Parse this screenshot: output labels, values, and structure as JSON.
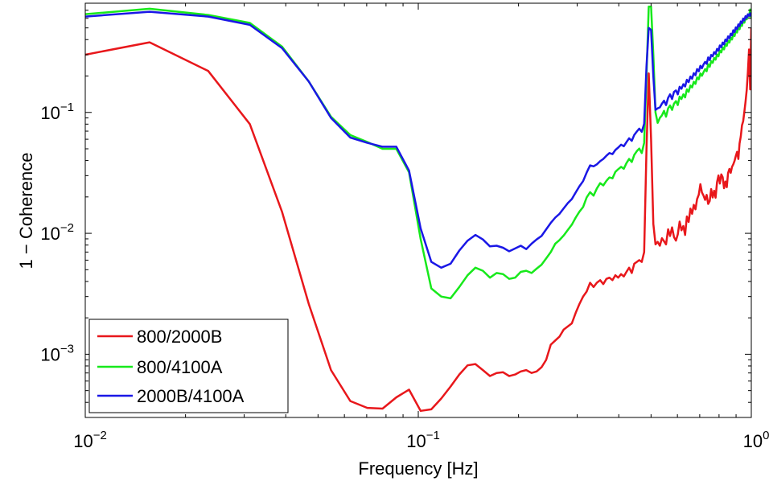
{
  "chart_data": {
    "type": "line",
    "xlabel": "Frequency [Hz]",
    "ylabel": "1 − Coherence",
    "xscale": "log",
    "yscale": "log",
    "xlim": [
      0.01,
      1
    ],
    "ylim": [
      0.0003,
      0.8
    ],
    "x_ticks": [
      {
        "value": 0.01,
        "base": "10",
        "exp": "−2"
      },
      {
        "value": 0.1,
        "base": "10",
        "exp": "−1"
      },
      {
        "value": 1,
        "base": "10",
        "exp": "0"
      }
    ],
    "y_ticks": [
      {
        "value": 0.001,
        "base": "10",
        "exp": "−3"
      },
      {
        "value": 0.01,
        "base": "10",
        "exp": "−2"
      },
      {
        "value": 0.1,
        "base": "10",
        "exp": "−1"
      }
    ],
    "grid": false,
    "legend_position": "bottom-left",
    "series": [
      {
        "name": "800/2000B",
        "color": "#e8171b",
        "x": [
          0.01,
          0.0156,
          0.0234,
          0.0312,
          0.039,
          0.0469,
          0.0547,
          0.0625,
          0.0703,
          0.0781,
          0.0859,
          0.0938,
          0.1016,
          0.1094,
          0.1172,
          0.125,
          0.1328,
          0.1406,
          0.1484,
          0.1563,
          0.1641,
          0.1719,
          0.1797,
          0.1875,
          0.1953,
          0.2031,
          0.2109,
          0.2188,
          0.2266,
          0.2344,
          0.2422,
          0.25,
          0.2578,
          0.2656,
          0.2734,
          0.2813,
          0.2891,
          0.2969,
          0.3047,
          0.3125,
          0.3203,
          0.3281,
          0.3359,
          0.3438,
          0.3516,
          0.3594,
          0.3672,
          0.375,
          0.3828,
          0.3906,
          0.3984,
          0.4063,
          0.4141,
          0.4219,
          0.4297,
          0.4375,
          0.4453,
          0.4531,
          0.4609,
          0.4688,
          0.4766,
          0.4844,
          0.4922,
          0.5,
          0.5078,
          0.5156,
          0.5234,
          0.5313,
          0.5391,
          0.5469,
          0.5547,
          0.5625,
          0.5703,
          0.5781,
          0.5859,
          0.5938,
          0.6016,
          0.6094,
          0.6172,
          0.625,
          0.6328,
          0.6406,
          0.6484,
          0.6563,
          0.6641,
          0.6719,
          0.6797,
          0.6875,
          0.6953,
          0.7031,
          0.7109,
          0.7188,
          0.7266,
          0.7344,
          0.7422,
          0.75,
          0.7578,
          0.7656,
          0.7734,
          0.7813,
          0.7891,
          0.7969,
          0.8047,
          0.8125,
          0.8203,
          0.8281,
          0.8359,
          0.8438,
          0.8516,
          0.8594,
          0.8672,
          0.875,
          0.8828,
          0.8906,
          0.8984,
          0.9063,
          0.9141,
          0.9219,
          0.9297,
          0.9375,
          0.9453,
          0.9531,
          0.9609,
          0.9688,
          0.9766,
          0.9844,
          0.9922,
          1.0
        ],
        "y": [
          0.3,
          0.38,
          0.22,
          0.08,
          0.015,
          0.0026,
          0.00074,
          0.00041,
          0.00036,
          0.000355,
          0.00044,
          0.00051,
          0.00034,
          0.00035,
          0.00043,
          0.00054,
          0.00068,
          0.00081,
          0.00083,
          0.00074,
          0.00066,
          0.0007,
          0.00071,
          0.00066,
          0.00068,
          0.00072,
          0.00074,
          0.0007,
          0.00072,
          0.00078,
          0.0009,
          0.0012,
          0.0013,
          0.0014,
          0.0016,
          0.0017,
          0.0018,
          0.0022,
          0.0026,
          0.003,
          0.0033,
          0.0039,
          0.0036,
          0.0039,
          0.0041,
          0.0038,
          0.0042,
          0.0043,
          0.0041,
          0.0045,
          0.0043,
          0.0046,
          0.0044,
          0.0048,
          0.0052,
          0.0047,
          0.0056,
          0.0058,
          0.006,
          0.0058,
          0.007,
          0.05,
          0.21,
          0.06,
          0.012,
          0.0081,
          0.0085,
          0.0079,
          0.0091,
          0.0086,
          0.0081,
          0.0108,
          0.0095,
          0.0112,
          0.0093,
          0.0087,
          0.0098,
          0.0125,
          0.0106,
          0.0115,
          0.0097,
          0.0138,
          0.0124,
          0.016,
          0.0145,
          0.0172,
          0.0158,
          0.0192,
          0.0209,
          0.0255,
          0.0218,
          0.0205,
          0.0189,
          0.0208,
          0.0175,
          0.0185,
          0.0232,
          0.0198,
          0.0225,
          0.0197,
          0.0265,
          0.0301,
          0.0258,
          0.0307,
          0.0291,
          0.0236,
          0.0268,
          0.0241,
          0.0315,
          0.0341,
          0.0317,
          0.0354,
          0.0372,
          0.0398,
          0.0435,
          0.0472,
          0.0412,
          0.0554,
          0.0632,
          0.0781,
          0.0845,
          0.1016,
          0.1221,
          0.1531,
          0.2128,
          0.3315,
          0.155,
          0.5
        ]
      },
      {
        "name": "800/4100A",
        "color": "#17e91b",
        "x": [
          0.01,
          0.0156,
          0.0234,
          0.0312,
          0.039,
          0.0469,
          0.0547,
          0.0625,
          0.0703,
          0.0781,
          0.0859,
          0.0938,
          0.1016,
          0.1094,
          0.1172,
          0.125,
          0.1328,
          0.1406,
          0.1484,
          0.1563,
          0.1641,
          0.1719,
          0.1797,
          0.1875,
          0.1953,
          0.2031,
          0.2109,
          0.2188,
          0.2266,
          0.2344,
          0.2422,
          0.25,
          0.2578,
          0.2656,
          0.2734,
          0.2813,
          0.2891,
          0.2969,
          0.3047,
          0.3125,
          0.3203,
          0.3281,
          0.3359,
          0.3438,
          0.3516,
          0.3594,
          0.3672,
          0.375,
          0.3828,
          0.3906,
          0.3984,
          0.4063,
          0.4141,
          0.4219,
          0.4297,
          0.4375,
          0.4453,
          0.4531,
          0.4609,
          0.4688,
          0.4766,
          0.4844,
          0.4922,
          0.5,
          0.5078,
          0.5156,
          0.5234,
          0.5313,
          0.5391,
          0.5469,
          0.5547,
          0.5625,
          0.5703,
          0.5781,
          0.5859,
          0.5938,
          0.6016,
          0.6094,
          0.6172,
          0.625,
          0.6328,
          0.6406,
          0.6484,
          0.6563,
          0.6641,
          0.6719,
          0.6797,
          0.6875,
          0.6953,
          0.7031,
          0.7109,
          0.7188,
          0.7266,
          0.7344,
          0.7422,
          0.75,
          0.7578,
          0.7656,
          0.7734,
          0.7813,
          0.7891,
          0.7969,
          0.8047,
          0.8125,
          0.8203,
          0.8281,
          0.8359,
          0.8438,
          0.8516,
          0.8594,
          0.8672,
          0.875,
          0.8828,
          0.8906,
          0.8984,
          0.9063,
          0.9141,
          0.9219,
          0.9297,
          0.9375,
          0.9453,
          0.9531,
          0.9609,
          0.9688,
          0.9766,
          0.9844,
          0.9922,
          1.0
        ],
        "y": [
          0.65,
          0.72,
          0.64,
          0.55,
          0.35,
          0.18,
          0.092,
          0.065,
          0.057,
          0.05,
          0.05,
          0.032,
          0.009,
          0.0035,
          0.003,
          0.0029,
          0.0036,
          0.0045,
          0.0052,
          0.0049,
          0.0043,
          0.0047,
          0.0046,
          0.0042,
          0.0043,
          0.0048,
          0.0049,
          0.0047,
          0.0051,
          0.0055,
          0.0062,
          0.007,
          0.0082,
          0.0088,
          0.0096,
          0.0107,
          0.0118,
          0.0135,
          0.0151,
          0.0165,
          0.0198,
          0.0219,
          0.0205,
          0.0235,
          0.026,
          0.0249,
          0.0272,
          0.029,
          0.0285,
          0.0322,
          0.0339,
          0.0355,
          0.0342,
          0.0381,
          0.0412,
          0.0389,
          0.0445,
          0.0478,
          0.0502,
          0.0461,
          0.056,
          0.2,
          0.75,
          0.75,
          0.3,
          0.1,
          0.082,
          0.09,
          0.0945,
          0.103,
          0.0921,
          0.108,
          0.114,
          0.105,
          0.118,
          0.124,
          0.115,
          0.135,
          0.129,
          0.141,
          0.133,
          0.155,
          0.148,
          0.167,
          0.161,
          0.179,
          0.172,
          0.195,
          0.188,
          0.21,
          0.201,
          0.215,
          0.228,
          0.219,
          0.25,
          0.238,
          0.265,
          0.257,
          0.282,
          0.273,
          0.301,
          0.291,
          0.325,
          0.314,
          0.345,
          0.332,
          0.368,
          0.355,
          0.392,
          0.378,
          0.415,
          0.401,
          0.445,
          0.428,
          0.475,
          0.458,
          0.505,
          0.488,
          0.538,
          0.519,
          0.575,
          0.552,
          0.612,
          0.588,
          0.642,
          0.621,
          0.71,
          0.6
        ]
      },
      {
        "name": "2000B/4100A",
        "color": "#1a17e6",
        "x": [
          0.01,
          0.0156,
          0.0234,
          0.0312,
          0.039,
          0.0469,
          0.0547,
          0.0625,
          0.0703,
          0.0781,
          0.0859,
          0.0938,
          0.1016,
          0.1094,
          0.1172,
          0.125,
          0.1328,
          0.1406,
          0.1484,
          0.1563,
          0.1641,
          0.1719,
          0.1797,
          0.1875,
          0.1953,
          0.2031,
          0.2109,
          0.2188,
          0.2266,
          0.2344,
          0.2422,
          0.25,
          0.2578,
          0.2656,
          0.2734,
          0.2813,
          0.2891,
          0.2969,
          0.3047,
          0.3125,
          0.3203,
          0.3281,
          0.3359,
          0.3438,
          0.3516,
          0.3594,
          0.3672,
          0.375,
          0.3828,
          0.3906,
          0.3984,
          0.4063,
          0.4141,
          0.4219,
          0.4297,
          0.4375,
          0.4453,
          0.4531,
          0.4609,
          0.4688,
          0.4766,
          0.4844,
          0.4922,
          0.5,
          0.5078,
          0.5156,
          0.5234,
          0.5313,
          0.5391,
          0.5469,
          0.5547,
          0.5625,
          0.5703,
          0.5781,
          0.5859,
          0.5938,
          0.6016,
          0.6094,
          0.6172,
          0.625,
          0.6328,
          0.6406,
          0.6484,
          0.6563,
          0.6641,
          0.6719,
          0.6797,
          0.6875,
          0.6953,
          0.7031,
          0.7109,
          0.7188,
          0.7266,
          0.7344,
          0.7422,
          0.75,
          0.7578,
          0.7656,
          0.7734,
          0.7813,
          0.7891,
          0.7969,
          0.8047,
          0.8125,
          0.8203,
          0.8281,
          0.8359,
          0.8438,
          0.8516,
          0.8594,
          0.8672,
          0.875,
          0.8828,
          0.8906,
          0.8984,
          0.9063,
          0.9141,
          0.9219,
          0.9297,
          0.9375,
          0.9453,
          0.9531,
          0.9609,
          0.9688,
          0.9766,
          0.9844,
          0.9922,
          1.0
        ],
        "y": [
          0.62,
          0.68,
          0.62,
          0.53,
          0.34,
          0.18,
          0.09,
          0.062,
          0.056,
          0.052,
          0.052,
          0.033,
          0.011,
          0.0058,
          0.0052,
          0.0056,
          0.0072,
          0.0087,
          0.0097,
          0.0089,
          0.0078,
          0.0079,
          0.0076,
          0.0071,
          0.0075,
          0.0079,
          0.0074,
          0.0082,
          0.0089,
          0.0095,
          0.0108,
          0.0122,
          0.0135,
          0.0145,
          0.0161,
          0.0178,
          0.0192,
          0.0218,
          0.0245,
          0.027,
          0.0318,
          0.0365,
          0.0358,
          0.0372,
          0.0395,
          0.0412,
          0.0438,
          0.0461,
          0.0452,
          0.0489,
          0.0512,
          0.0541,
          0.0525,
          0.0568,
          0.0611,
          0.0582,
          0.0652,
          0.0695,
          0.0735,
          0.0691,
          0.0805,
          0.24,
          0.5,
          0.48,
          0.2,
          0.105,
          0.108,
          0.11,
          0.118,
          0.125,
          0.115,
          0.132,
          0.141,
          0.129,
          0.148,
          0.152,
          0.141,
          0.163,
          0.157,
          0.171,
          0.164,
          0.186,
          0.178,
          0.198,
          0.19,
          0.211,
          0.203,
          0.228,
          0.219,
          0.243,
          0.232,
          0.249,
          0.262,
          0.252,
          0.285,
          0.271,
          0.299,
          0.291,
          0.315,
          0.305,
          0.335,
          0.324,
          0.358,
          0.346,
          0.378,
          0.365,
          0.401,
          0.388,
          0.425,
          0.411,
          0.448,
          0.434,
          0.478,
          0.461,
          0.505,
          0.49,
          0.535,
          0.518,
          0.565,
          0.548,
          0.598,
          0.576,
          0.625,
          0.605,
          0.648,
          0.629,
          0.66,
          0.62
        ]
      }
    ]
  }
}
